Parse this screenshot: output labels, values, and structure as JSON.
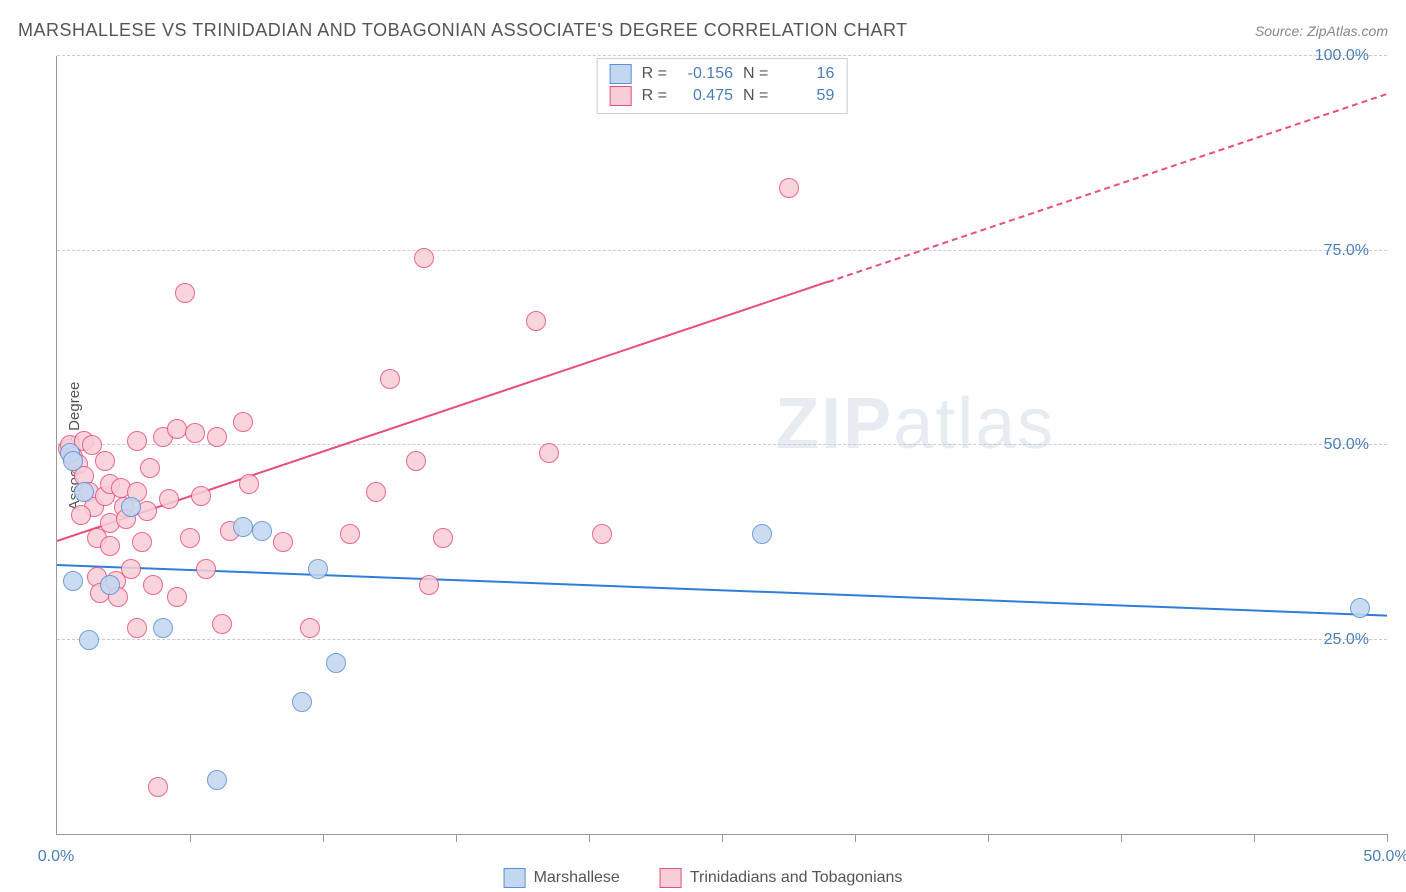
{
  "title": "MARSHALLESE VS TRINIDADIAN AND TOBAGONIAN ASSOCIATE'S DEGREE CORRELATION CHART",
  "source": "Source: ZipAtlas.com",
  "ylabel": "Associate's Degree",
  "watermark_bold": "ZIP",
  "watermark_light": "atlas",
  "chart": {
    "type": "scatter",
    "xlim": [
      0,
      50
    ],
    "ylim": [
      0,
      100
    ],
    "x_ticks": [
      0,
      25,
      50
    ],
    "x_tick_labels": [
      "0.0%",
      "",
      "50.0%"
    ],
    "x_minor_ticks": [
      5,
      10,
      15,
      20,
      25,
      30,
      35,
      40,
      45,
      50
    ],
    "y_ticks": [
      25,
      50,
      75,
      100
    ],
    "y_tick_labels": [
      "25.0%",
      "50.0%",
      "75.0%",
      "100.0%"
    ],
    "grid_color": "#cccccc",
    "background_color": "#ffffff",
    "axis_color": "#999999",
    "tick_label_color": "#4a7ebb",
    "point_radius": 9,
    "series": [
      {
        "name": "Marshallese",
        "fill": "#c3d7f0",
        "stroke": "#5a8fd6",
        "r_value": "-0.156",
        "n_value": "16",
        "trend": {
          "x1": 0,
          "y1": 34.5,
          "x2": 50,
          "y2": 28.0,
          "color": "#2f7ed8",
          "dash_after_x": 50
        },
        "points": [
          [
            0.5,
            49.0
          ],
          [
            0.6,
            48.0
          ],
          [
            0.6,
            32.5
          ],
          [
            1.2,
            25.0
          ],
          [
            2.0,
            32.0
          ],
          [
            4.0,
            26.5
          ],
          [
            6.0,
            7.0
          ],
          [
            7.0,
            39.5
          ],
          [
            7.7,
            39.0
          ],
          [
            9.2,
            17.0
          ],
          [
            9.8,
            34.0
          ],
          [
            10.5,
            22.0
          ],
          [
            26.5,
            38.5
          ],
          [
            49.0,
            29.0
          ],
          [
            2.8,
            42.0
          ],
          [
            1.0,
            44.0
          ]
        ]
      },
      {
        "name": "Trinidadians and Tobagonians",
        "fill": "#f7cdd8",
        "stroke": "#e84f7a",
        "r_value": "0.475",
        "n_value": "59",
        "trend": {
          "x1": 0,
          "y1": 37.5,
          "x2": 50,
          "y2": 95.0,
          "color": "#e84f7a",
          "dash_after_x": 29
        },
        "points": [
          [
            0.4,
            49.5
          ],
          [
            0.5,
            50.0
          ],
          [
            0.6,
            48.5
          ],
          [
            0.8,
            47.5
          ],
          [
            1.0,
            50.5
          ],
          [
            1.0,
            46.0
          ],
          [
            1.2,
            44.0
          ],
          [
            1.3,
            50.0
          ],
          [
            1.4,
            42.0
          ],
          [
            1.5,
            38.0
          ],
          [
            1.5,
            33.0
          ],
          [
            1.6,
            31.0
          ],
          [
            1.8,
            48.0
          ],
          [
            1.8,
            43.5
          ],
          [
            2.0,
            45.0
          ],
          [
            2.0,
            40.0
          ],
          [
            2.0,
            37.0
          ],
          [
            2.2,
            32.5
          ],
          [
            2.3,
            30.5
          ],
          [
            2.4,
            44.5
          ],
          [
            2.5,
            42.0
          ],
          [
            2.6,
            40.5
          ],
          [
            2.8,
            34.0
          ],
          [
            3.0,
            50.5
          ],
          [
            3.0,
            44.0
          ],
          [
            3.0,
            26.5
          ],
          [
            3.2,
            37.5
          ],
          [
            3.4,
            41.5
          ],
          [
            3.5,
            47.0
          ],
          [
            3.6,
            32.0
          ],
          [
            3.8,
            6.0
          ],
          [
            4.0,
            51.0
          ],
          [
            4.2,
            43.0
          ],
          [
            4.5,
            30.5
          ],
          [
            4.5,
            52.0
          ],
          [
            4.8,
            69.5
          ],
          [
            5.0,
            38.0
          ],
          [
            5.2,
            51.5
          ],
          [
            5.4,
            43.5
          ],
          [
            5.6,
            34.0
          ],
          [
            6.0,
            51.0
          ],
          [
            6.2,
            27.0
          ],
          [
            6.5,
            39.0
          ],
          [
            7.0,
            53.0
          ],
          [
            7.2,
            45.0
          ],
          [
            8.5,
            37.5
          ],
          [
            9.5,
            26.5
          ],
          [
            11.0,
            38.5
          ],
          [
            12.0,
            44.0
          ],
          [
            12.5,
            58.5
          ],
          [
            13.5,
            48.0
          ],
          [
            13.8,
            74.0
          ],
          [
            14.0,
            32.0
          ],
          [
            14.5,
            38.0
          ],
          [
            18.0,
            66.0
          ],
          [
            18.5,
            49.0
          ],
          [
            20.5,
            38.5
          ],
          [
            27.5,
            83.0
          ],
          [
            0.9,
            41.0
          ]
        ]
      }
    ]
  },
  "legend": {
    "series1_label": "Marshallese",
    "series2_label": "Trinidadians and Tobagonians",
    "r_label": "R  =",
    "n_label": "N  ="
  }
}
